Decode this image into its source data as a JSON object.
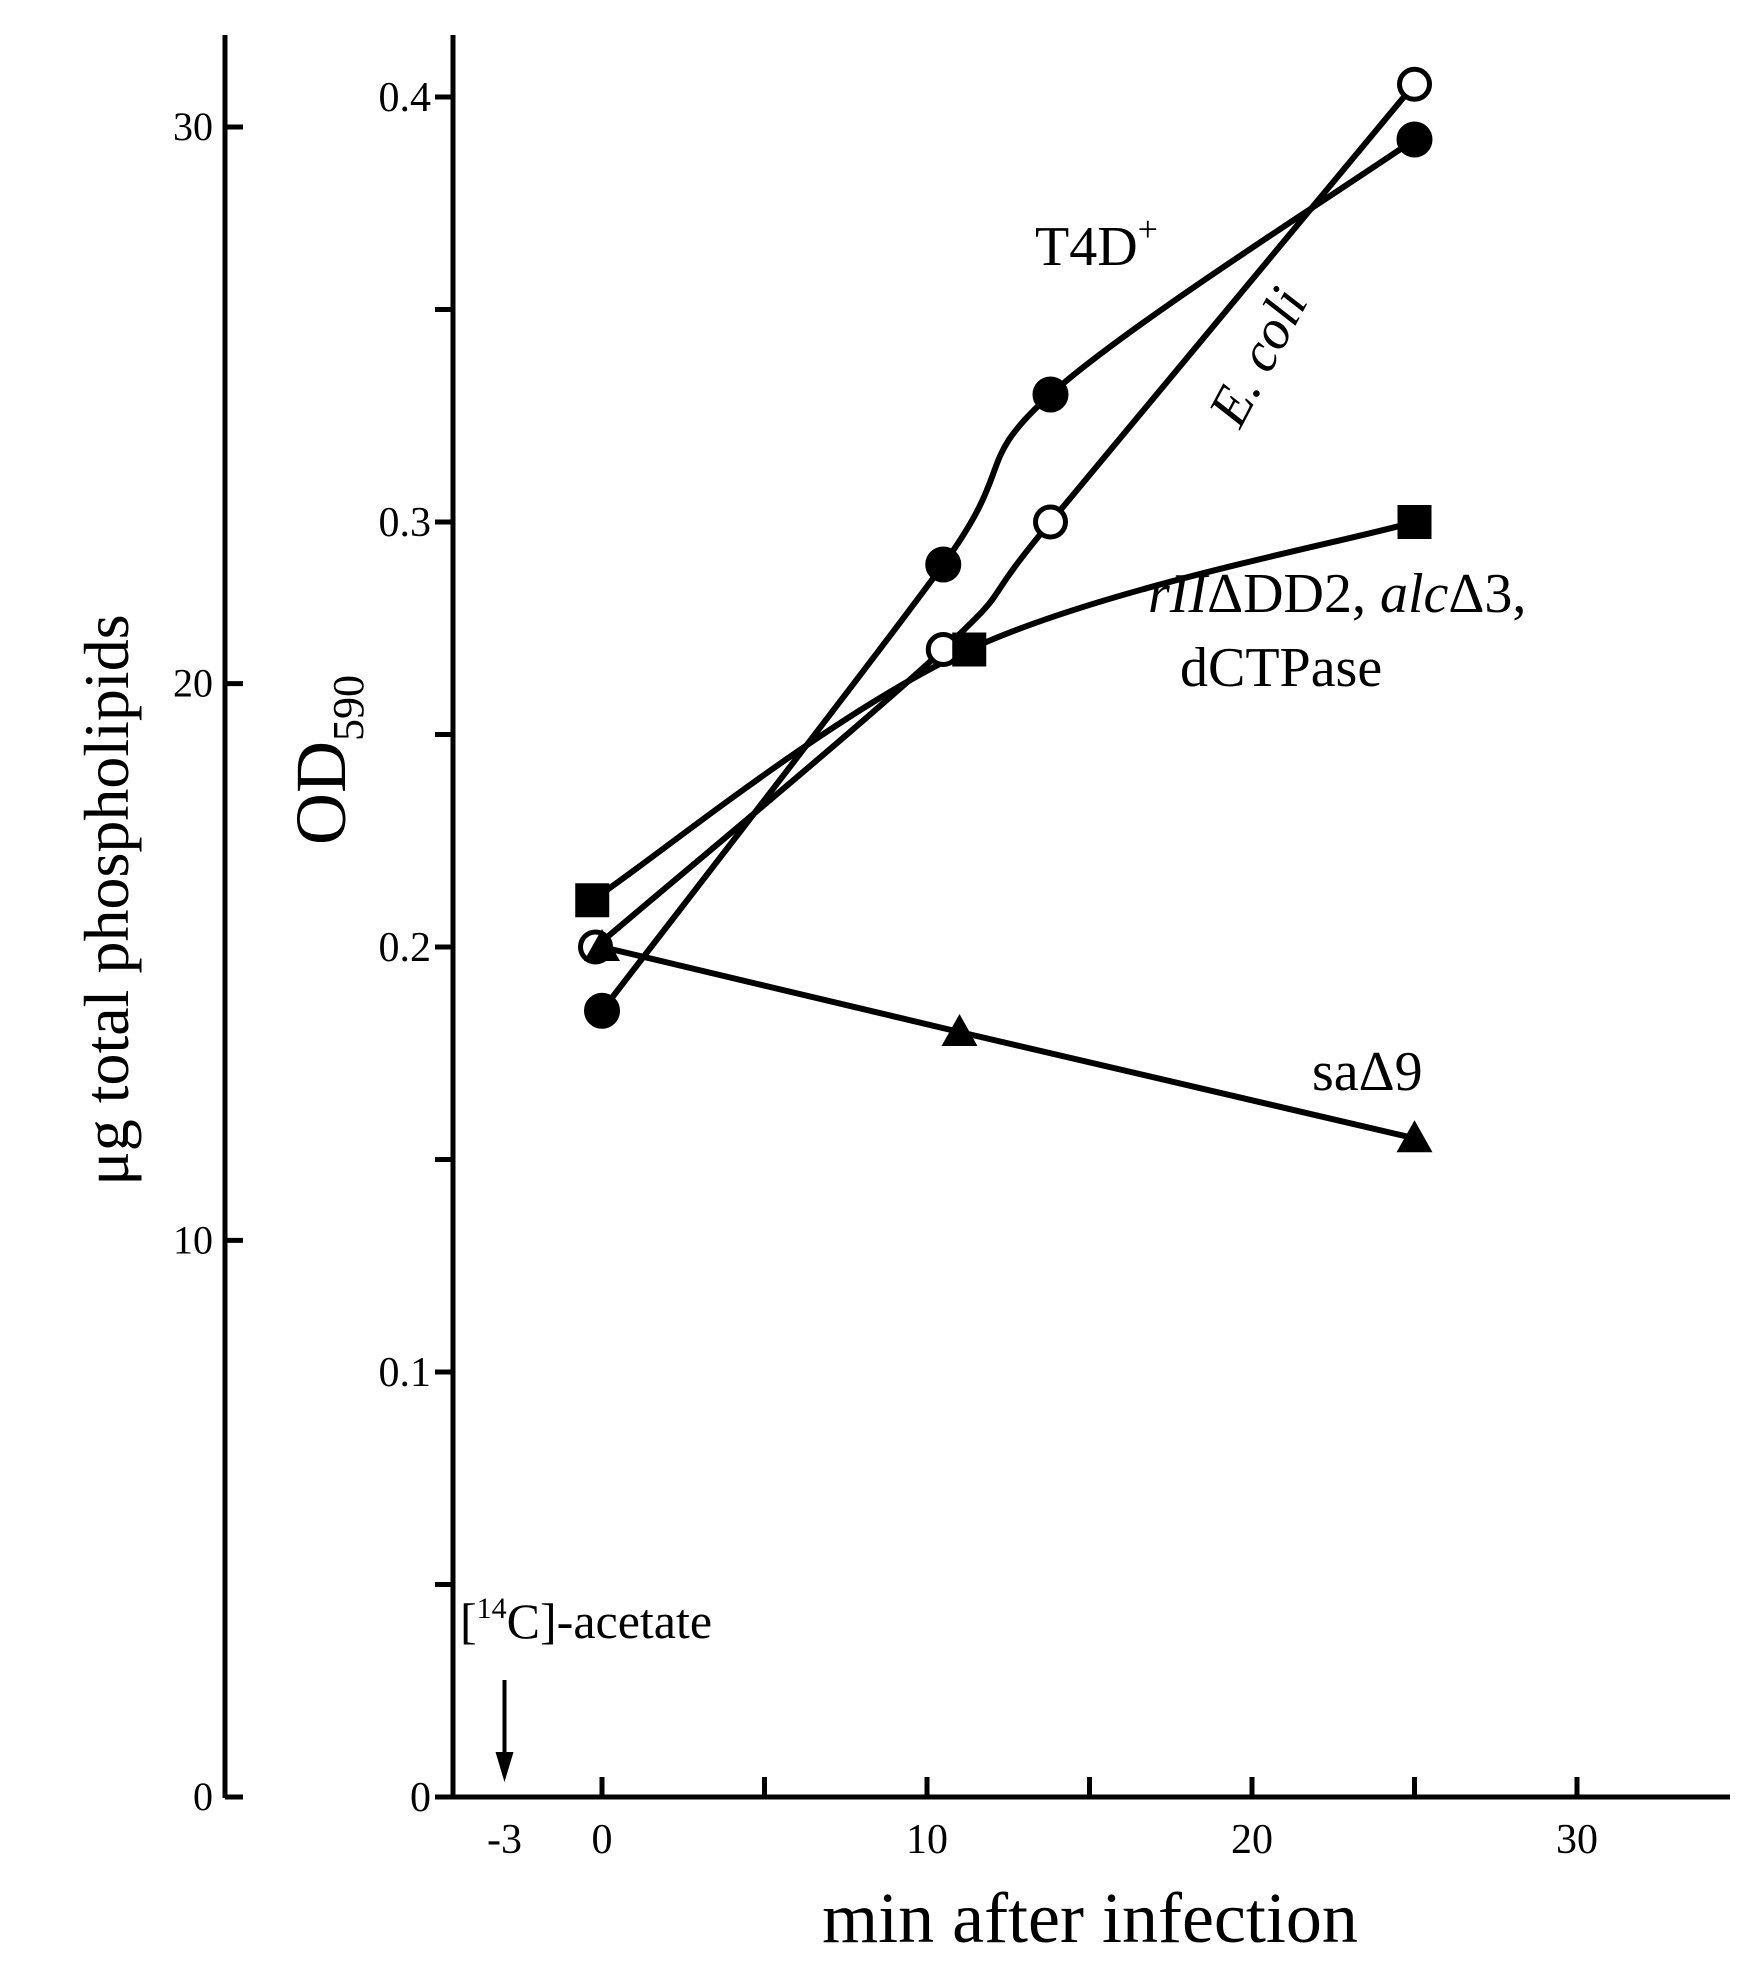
{
  "chart_data": {
    "type": "line",
    "xlabel": "min after infection",
    "ylabel_left": "μg total phospholipids",
    "ylabel_od": {
      "main": "OD",
      "sub": "590"
    },
    "x_ticks": [
      "-3",
      "0",
      "10",
      "20",
      "30"
    ],
    "x_tick_values": [
      -3,
      0,
      10,
      20,
      30
    ],
    "xlim": [
      -5,
      35
    ],
    "x_minor_ticks": [
      0,
      5,
      10,
      15,
      20,
      25,
      30
    ],
    "y_od_ticks": [
      "0",
      "0.1",
      "0.2",
      "0.3",
      "0.4"
    ],
    "y_od_tick_values": [
      0,
      0.1,
      0.2,
      0.3,
      0.4
    ],
    "y_od_minor_ticks": [
      0.05,
      0.15,
      0.25,
      0.35
    ],
    "y_od_lim": [
      0,
      0.4
    ],
    "y_left_ticks": [
      "0",
      "10",
      "20",
      "30"
    ],
    "y_left_tick_values": [
      0,
      10,
      20,
      30
    ],
    "y_left_lim": [
      0,
      30
    ],
    "annotation": {
      "label": "-acetate",
      "isotope": "14",
      "element": "C",
      "x": -3
    },
    "series": [
      {
        "name": "T4D+",
        "label_main": "T4D",
        "label_sup": "+",
        "marker": "filled-circle",
        "x": [
          0,
          10.5,
          13.8,
          25
        ],
        "y": [
          0.185,
          0.29,
          0.33,
          0.39
        ]
      },
      {
        "name": "E. coli",
        "marker": "open-circle",
        "x": [
          -0.2,
          10.5,
          13.8,
          25
        ],
        "y": [
          0.2,
          0.27,
          0.3,
          0.403
        ]
      },
      {
        "name": "rIIΔDD2, alcΔ3, dCTPase",
        "label_line1": [
          {
            "text": "rII",
            "italic": true
          },
          {
            "text": "ΔDD2, ",
            "italic": false
          },
          {
            "text": "alc",
            "italic": true
          },
          {
            "text": "Δ3,",
            "italic": false
          }
        ],
        "label_line2": "dCTPase",
        "marker": "filled-square",
        "x": [
          -0.3,
          11.3,
          25
        ],
        "y": [
          0.211,
          0.27,
          0.3
        ]
      },
      {
        "name": "saΔ9",
        "marker": "filled-triangle",
        "x": [
          0,
          11,
          25
        ],
        "y": [
          0.2,
          0.18,
          0.155
        ]
      }
    ]
  }
}
